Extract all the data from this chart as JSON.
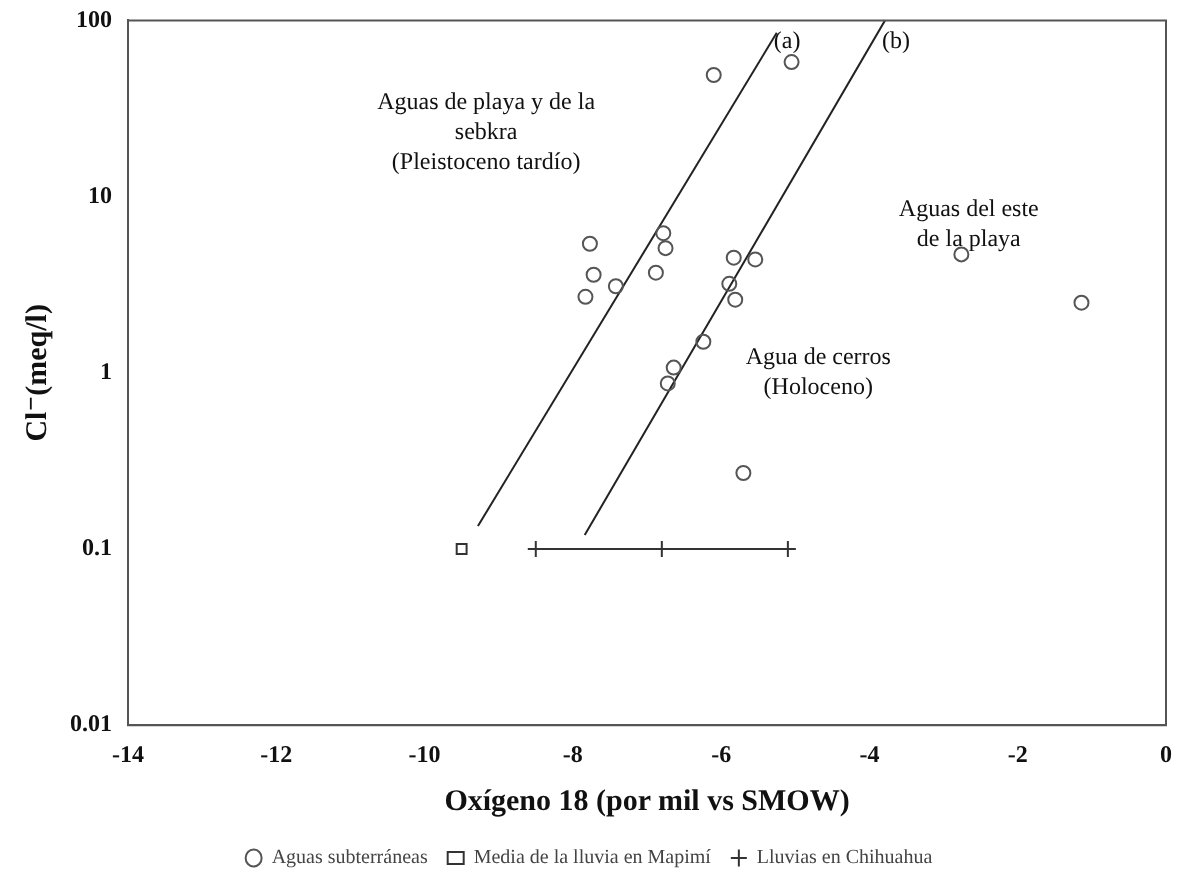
{
  "chart_data": {
    "type": "scatter",
    "xlabel": "Oxígeno 18 (por mil vs SMOW)",
    "ylabel": "Cl⁻(meq/l)",
    "xlim": [
      -14,
      0
    ],
    "xticks": [
      -14,
      -12,
      -10,
      -8,
      -6,
      -4,
      -2,
      0
    ],
    "ylim": [
      0.01,
      100
    ],
    "yticks": [
      0.01,
      0.1,
      1,
      10,
      100
    ],
    "log": "y",
    "grid": false,
    "legend": "bottom",
    "series": [
      {
        "name": "Aguas subterráneas",
        "marker": "circle",
        "color": "#555555",
        "x": [
          -6.1,
          -5.05,
          -7.77,
          -7.72,
          -7.83,
          -7.42,
          -6.78,
          -6.75,
          -6.88,
          -5.83,
          -5.54,
          -5.89,
          -5.81,
          -6.24,
          -6.64,
          -6.72,
          -5.7,
          -2.76,
          -1.14
        ],
        "values": [
          49,
          58,
          5.4,
          3.6,
          2.7,
          3.1,
          6.2,
          5.1,
          3.7,
          4.5,
          4.4,
          3.2,
          2.6,
          1.5,
          1.07,
          0.87,
          0.27,
          4.7,
          2.5
        ]
      },
      {
        "name": "Media de la lluvia en Mapimí",
        "marker": "square",
        "color": "#333333",
        "x": [
          -9.5
        ],
        "values": [
          0.1
        ]
      },
      {
        "name": "Lluvias en Chihuahua",
        "type": "line",
        "marker": "cross",
        "color": "#333333",
        "x": [
          -8.5,
          -6.8,
          -5.1
        ],
        "values": [
          0.1,
          0.1,
          0.1
        ]
      },
      {
        "type": "line",
        "marker": "none",
        "color": "#222222",
        "x": [
          -9.28,
          -5.25
        ],
        "values": [
          0.135,
          85
        ]
      },
      {
        "type": "line",
        "marker": "none",
        "color": "#222222",
        "x": [
          -7.84,
          -3.79
        ],
        "values": [
          0.12,
          100
        ]
      }
    ],
    "annotations": [
      "(a)",
      "(b)",
      "Aguas de playa y de la\nsebkra\n(Pleistoceno tardío)",
      "Agua de cerros\n(Holoceno)",
      "Aguas del este\nde la playa"
    ]
  }
}
